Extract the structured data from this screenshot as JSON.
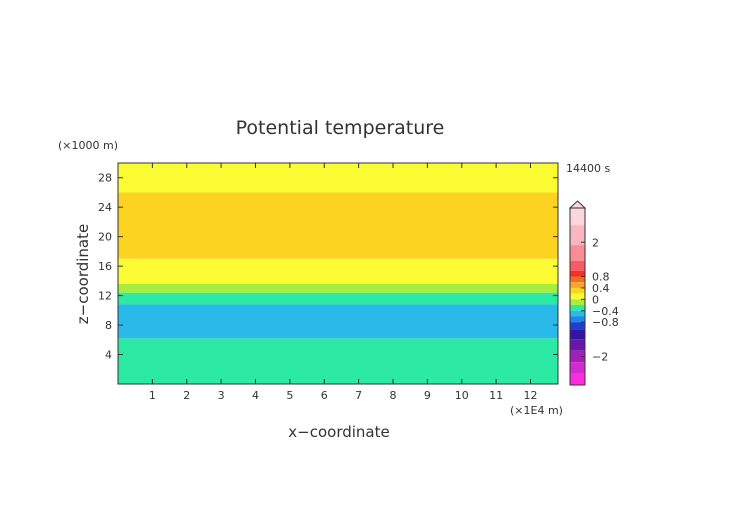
{
  "chart_data": {
    "type": "heatmap",
    "title": "Potential temperature",
    "xlabel": "x−coordinate",
    "ylabel": "z−coordinate",
    "x_unit": "(×1E4 m)",
    "y_unit": "(×1000 m)",
    "time_label": "14400 s",
    "xlim": [
      0,
      12.8
    ],
    "ylim": [
      0,
      30
    ],
    "x_ticks": [
      1,
      2,
      3,
      4,
      5,
      6,
      7,
      8,
      9,
      10,
      11,
      12
    ],
    "y_ticks": [
      4,
      8,
      12,
      16,
      20,
      24,
      28
    ],
    "bands": [
      {
        "z0": 0,
        "z1": 6.2,
        "value": -0.25
      },
      {
        "z0": 6.2,
        "z1": 10.8,
        "value": -0.55
      },
      {
        "z0": 10.8,
        "z1": 12.4,
        "value": -0.35
      },
      {
        "z0": 12.4,
        "z1": 13.6,
        "value": -0.05
      },
      {
        "z0": 13.6,
        "z1": 15.0,
        "value": 0.15
      },
      {
        "z0": 15.0,
        "z1": 17.0,
        "value": 0.15
      },
      {
        "z0": 17.0,
        "z1": 26.0,
        "value": 0.35
      },
      {
        "z0": 26.0,
        "z1": 30.0,
        "value": 0.15
      }
    ],
    "colorbar": {
      "levels": [
        {
          "value": 3.0,
          "color": "#fbd6dc"
        },
        {
          "value": 2.2,
          "color": "#f9b6c0"
        },
        {
          "value": 1.6,
          "color": "#fb8c96"
        },
        {
          "value": 1.1,
          "color": "#fb5a62"
        },
        {
          "value": 0.9,
          "color": "#f52f2a"
        },
        {
          "value": 0.7,
          "color": "#f46d1b"
        },
        {
          "value": 0.5,
          "color": "#f8a433"
        },
        {
          "value": 0.3,
          "color": "#fcd320"
        },
        {
          "value": 0.1,
          "color": "#fbfb34"
        },
        {
          "value": -0.1,
          "color": "#a7ed3f"
        },
        {
          "value": -0.3,
          "color": "#2ce9a4"
        },
        {
          "value": -0.5,
          "color": "#2ab9e9"
        },
        {
          "value": -0.7,
          "color": "#1e86ec"
        },
        {
          "value": -0.9,
          "color": "#1c3fd2"
        },
        {
          "value": -1.2,
          "color": "#3614a2"
        },
        {
          "value": -1.6,
          "color": "#6a16a8"
        },
        {
          "value": -2.0,
          "color": "#a21fb6"
        },
        {
          "value": -2.4,
          "color": "#d42ad3"
        },
        {
          "value": -2.8,
          "color": "#fb2cdc"
        }
      ],
      "tick_labels": [
        {
          "value": 2.0,
          "label": "2"
        },
        {
          "value": 0.8,
          "label": "0.8"
        },
        {
          "value": 0.4,
          "label": "0.4"
        },
        {
          "value": 0.0,
          "label": "0"
        },
        {
          "value": -0.4,
          "label": "−0.4"
        },
        {
          "value": -0.8,
          "label": "−0.8"
        },
        {
          "value": -2.0,
          "label": "−2"
        }
      ]
    }
  }
}
